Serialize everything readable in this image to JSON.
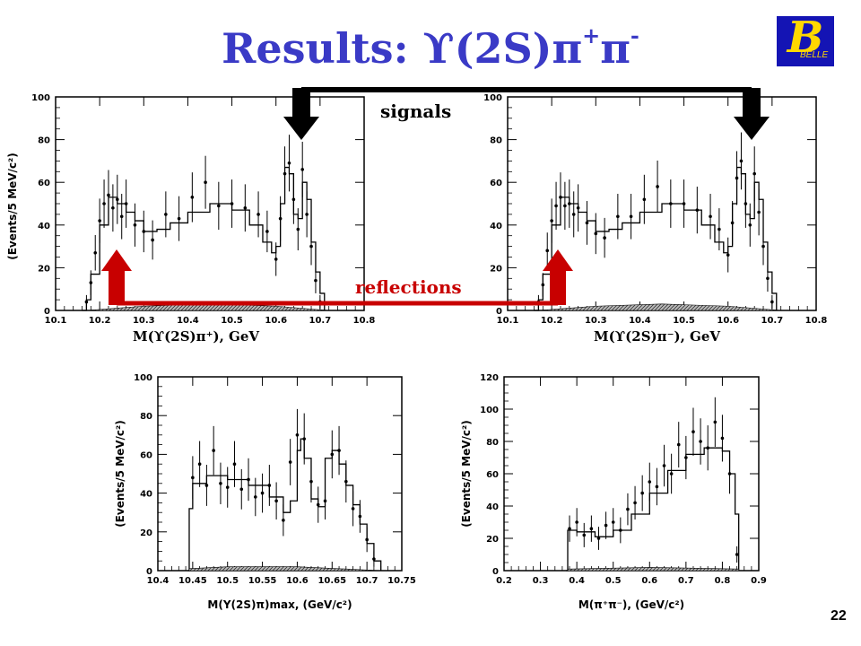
{
  "slide": {
    "title_prefix": "Results: ϒ(2S)π",
    "title_sup1": "+",
    "title_mid": "π",
    "title_sup2": "-",
    "logo_text": "BELLE",
    "logo_letter": "B",
    "page_number": "22",
    "signals_label": "signals",
    "reflections_label": "reflections",
    "colors": {
      "title": "#3a3ac6",
      "signals_arrow": "#000000",
      "reflection_arrow": "#c80000",
      "reflection_text": "#c80000"
    }
  },
  "chart_data": [
    {
      "type": "line",
      "xlabel": "M(ϒ(2S)π⁺), GeV",
      "ylabel": "(Events/5 MeV/c²)",
      "xlim": [
        10.1,
        10.8
      ],
      "ylim": [
        0,
        100
      ],
      "xticks": [
        "10.1",
        "10.2",
        "10.3",
        "10.4",
        "10.5",
        "10.6",
        "10.7",
        "10.8"
      ],
      "yticks": [
        "0",
        "20",
        "40",
        "60",
        "80",
        "100"
      ],
      "series": [
        {
          "role": "data",
          "x": [
            10.17,
            10.18,
            10.19,
            10.2,
            10.21,
            10.22,
            10.23,
            10.24,
            10.25,
            10.26,
            10.28,
            10.3,
            10.32,
            10.35,
            10.38,
            10.41,
            10.44,
            10.47,
            10.5,
            10.53,
            10.56,
            10.58,
            10.6,
            10.61,
            10.62,
            10.63,
            10.64,
            10.65,
            10.66,
            10.67,
            10.68,
            10.69,
            10.7
          ],
          "y": [
            4,
            13,
            27,
            42,
            50,
            54,
            48,
            52,
            44,
            50,
            40,
            37,
            33,
            45,
            43,
            53,
            60,
            49,
            50,
            48,
            45,
            37,
            24,
            43,
            64,
            69,
            52,
            38,
            66,
            45,
            30,
            14,
            4
          ]
        },
        {
          "role": "fit",
          "x": [
            10.16,
            10.17,
            10.18,
            10.2,
            10.22,
            10.24,
            10.26,
            10.28,
            10.3,
            10.33,
            10.36,
            10.4,
            10.45,
            10.5,
            10.54,
            10.57,
            10.59,
            10.6,
            10.61,
            10.62,
            10.63,
            10.64,
            10.65,
            10.66,
            10.67,
            10.68,
            10.69,
            10.7,
            10.71
          ],
          "y": [
            0,
            5,
            17,
            40,
            53,
            50,
            46,
            42,
            37,
            38,
            41,
            46,
            50,
            47,
            40,
            32,
            27,
            30,
            50,
            67,
            64,
            45,
            43,
            60,
            52,
            32,
            18,
            8,
            0
          ]
        },
        {
          "role": "background",
          "x": [
            10.17,
            10.3,
            10.45,
            10.6,
            10.72
          ],
          "y": [
            0,
            2,
            3,
            2,
            0
          ]
        }
      ]
    },
    {
      "type": "line",
      "xlabel": "M(ϒ(2S)π⁻), GeV",
      "ylabel": "",
      "xlim": [
        10.1,
        10.8
      ],
      "ylim": [
        0,
        100
      ],
      "xticks": [
        "10.1",
        "10.2",
        "10.3",
        "10.4",
        "10.5",
        "10.6",
        "10.7",
        "10.8"
      ],
      "yticks": [
        "0",
        "20",
        "40",
        "60",
        "80",
        "100"
      ],
      "series": [
        {
          "role": "data",
          "x": [
            10.17,
            10.18,
            10.19,
            10.2,
            10.21,
            10.22,
            10.23,
            10.24,
            10.25,
            10.26,
            10.28,
            10.3,
            10.32,
            10.35,
            10.38,
            10.41,
            10.44,
            10.47,
            10.5,
            10.53,
            10.56,
            10.58,
            10.6,
            10.61,
            10.62,
            10.63,
            10.64,
            10.65,
            10.66,
            10.67,
            10.68,
            10.69,
            10.7
          ],
          "y": [
            4,
            12,
            28,
            42,
            49,
            53,
            49,
            50,
            45,
            48,
            41,
            36,
            34,
            44,
            44,
            52,
            58,
            50,
            50,
            47,
            44,
            38,
            26,
            41,
            62,
            70,
            50,
            40,
            64,
            46,
            30,
            15,
            4
          ]
        },
        {
          "role": "fit",
          "x": [
            10.16,
            10.17,
            10.18,
            10.2,
            10.22,
            10.24,
            10.26,
            10.28,
            10.3,
            10.33,
            10.36,
            10.4,
            10.45,
            10.5,
            10.54,
            10.57,
            10.59,
            10.6,
            10.61,
            10.62,
            10.63,
            10.64,
            10.65,
            10.66,
            10.67,
            10.68,
            10.69,
            10.7,
            10.71
          ],
          "y": [
            0,
            5,
            17,
            40,
            53,
            50,
            46,
            42,
            37,
            38,
            41,
            46,
            50,
            47,
            40,
            32,
            27,
            30,
            50,
            67,
            64,
            45,
            43,
            60,
            52,
            32,
            18,
            8,
            0
          ]
        },
        {
          "role": "background",
          "x": [
            10.17,
            10.3,
            10.45,
            10.6,
            10.72
          ],
          "y": [
            0,
            2,
            3,
            2,
            0
          ]
        }
      ]
    },
    {
      "type": "line",
      "xlabel": "M(Y(2S)π)max, (GeV/c²)",
      "ylabel": "(Events/5 MeV/c²)",
      "xlim": [
        10.4,
        10.75
      ],
      "ylim": [
        0,
        100
      ],
      "xticks": [
        "10.4",
        "10.45",
        "10.5",
        "10.55",
        "10.6",
        "10.65",
        "10.7",
        "10.75"
      ],
      "yticks": [
        "0",
        "20",
        "40",
        "60",
        "80",
        "100"
      ],
      "series": [
        {
          "role": "data",
          "x": [
            10.45,
            10.46,
            10.47,
            10.48,
            10.49,
            10.5,
            10.51,
            10.52,
            10.53,
            10.54,
            10.55,
            10.56,
            10.57,
            10.58,
            10.59,
            10.6,
            10.61,
            10.62,
            10.63,
            10.64,
            10.65,
            10.66,
            10.67,
            10.68,
            10.69,
            10.7,
            10.71
          ],
          "y": [
            48,
            55,
            44,
            62,
            45,
            43,
            55,
            42,
            47,
            38,
            40,
            44,
            36,
            26,
            56,
            70,
            68,
            46,
            34,
            36,
            60,
            62,
            46,
            32,
            28,
            16,
            6
          ]
        },
        {
          "role": "fit",
          "x": [
            10.443,
            10.445,
            10.45,
            10.47,
            10.5,
            10.53,
            10.56,
            10.58,
            10.59,
            10.6,
            10.605,
            10.61,
            10.62,
            10.63,
            10.64,
            10.65,
            10.66,
            10.67,
            10.68,
            10.69,
            10.7,
            10.71,
            10.72
          ],
          "y": [
            0,
            32,
            45,
            49,
            47,
            44,
            38,
            30,
            36,
            62,
            68,
            58,
            37,
            33,
            58,
            62,
            55,
            44,
            34,
            24,
            14,
            5,
            0
          ]
        },
        {
          "role": "background",
          "x": [
            10.445,
            10.5,
            10.6,
            10.72
          ],
          "y": [
            1,
            2,
            2,
            0
          ]
        }
      ]
    },
    {
      "type": "line",
      "xlabel": "M(π⁺π⁻), (GeV/c²)",
      "ylabel": "(Events/5 MeV/c²)",
      "xlim": [
        0.2,
        0.9
      ],
      "ylim": [
        0,
        120
      ],
      "xticks": [
        "0.2",
        "0.3",
        "0.4",
        "0.5",
        "0.6",
        "0.7",
        "0.8",
        "0.9"
      ],
      "yticks": [
        "0",
        "20",
        "40",
        "60",
        "80",
        "100",
        "120"
      ],
      "series": [
        {
          "role": "data",
          "x": [
            0.38,
            0.4,
            0.42,
            0.44,
            0.46,
            0.48,
            0.5,
            0.52,
            0.54,
            0.56,
            0.58,
            0.6,
            0.62,
            0.64,
            0.66,
            0.68,
            0.7,
            0.72,
            0.74,
            0.76,
            0.78,
            0.8,
            0.82,
            0.84
          ],
          "y": [
            26,
            30,
            22,
            26,
            20,
            28,
            30,
            25,
            38,
            42,
            48,
            55,
            52,
            65,
            60,
            78,
            70,
            86,
            80,
            76,
            92,
            82,
            60,
            10
          ]
        },
        {
          "role": "fit",
          "x": [
            0.37,
            0.375,
            0.4,
            0.45,
            0.5,
            0.55,
            0.6,
            0.65,
            0.7,
            0.75,
            0.78,
            0.8,
            0.82,
            0.835,
            0.845
          ],
          "y": [
            0,
            25,
            24,
            21,
            25,
            35,
            48,
            62,
            72,
            76,
            76,
            74,
            60,
            35,
            0
          ]
        },
        {
          "role": "background",
          "x": [
            0.375,
            0.6,
            0.845
          ],
          "y": [
            1,
            2,
            1
          ]
        }
      ]
    }
  ]
}
